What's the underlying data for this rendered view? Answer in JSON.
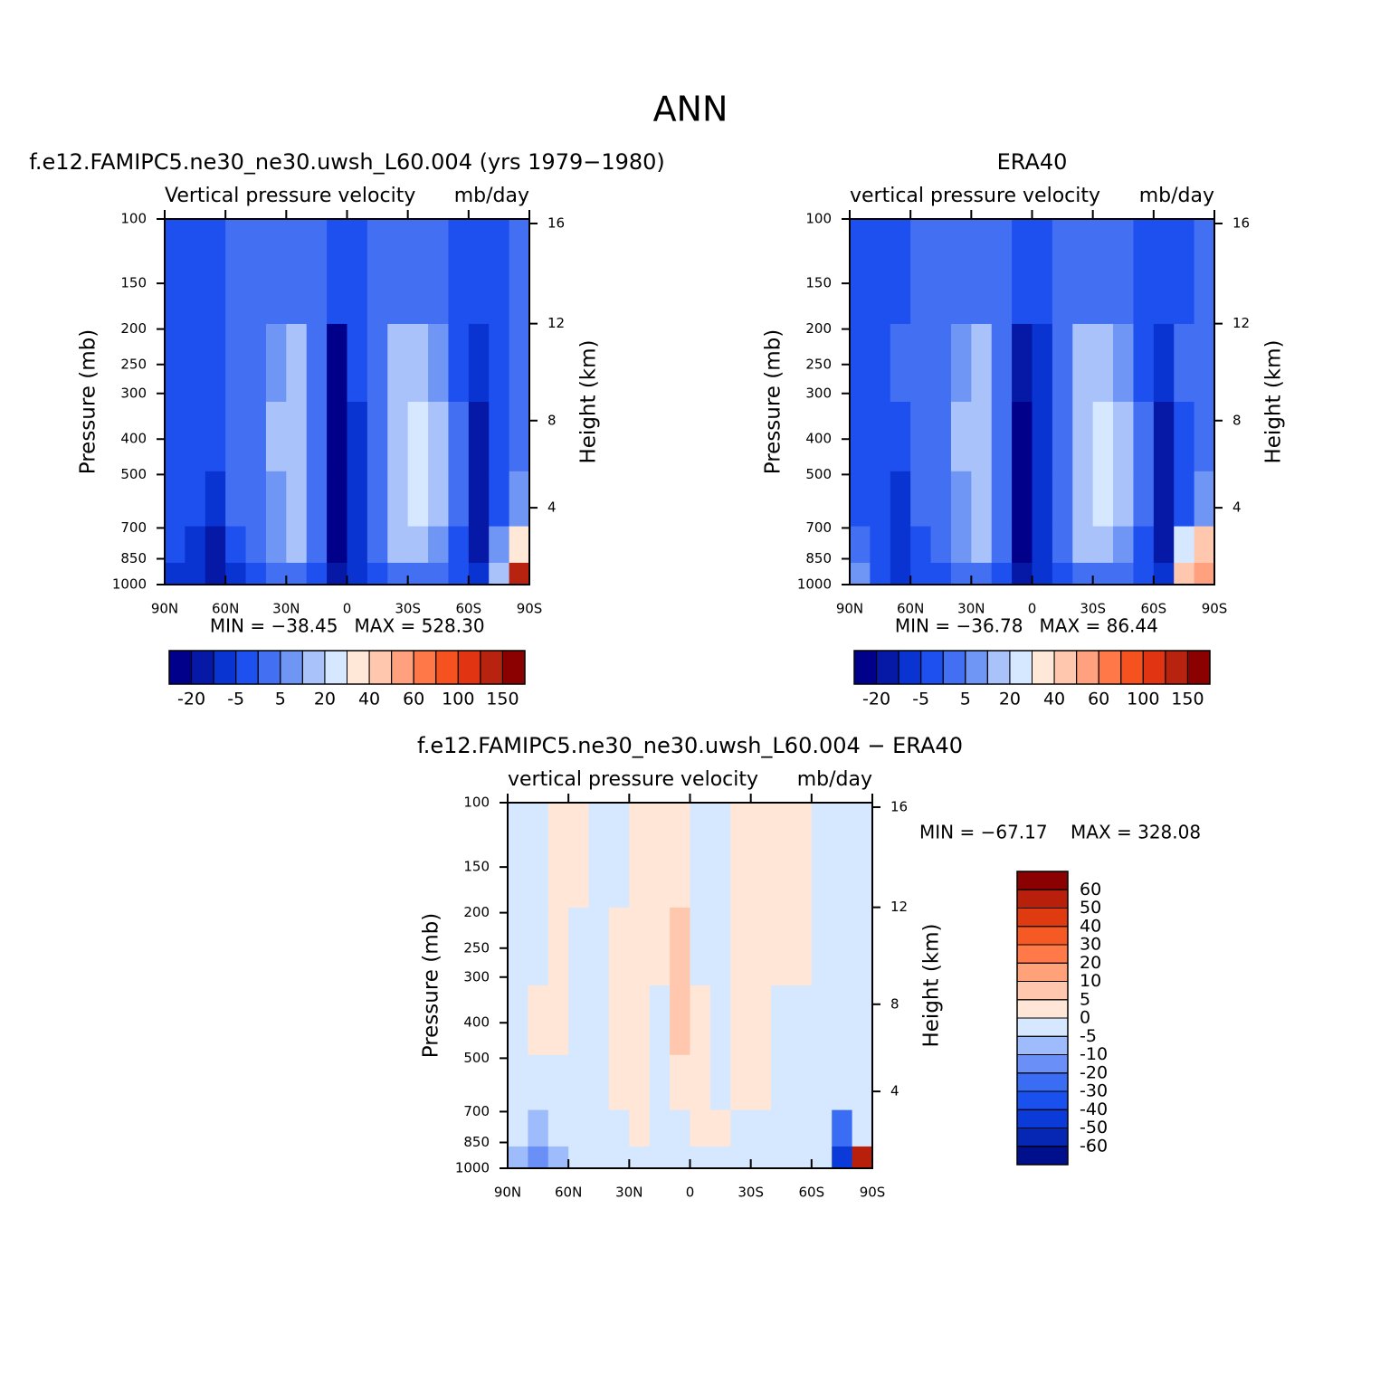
{
  "title": "ANN",
  "chart_data": [
    {
      "type": "contour",
      "title": "f.e12.FAMIPC5.ne30_ne30.uwsh_L60.004 (yrs 1979−1980)",
      "subtitle": "Vertical pressure velocity",
      "units": "mb/day",
      "ylabel": "Pressure (mb)",
      "y2label": "Height (km)",
      "min_text": "MIN = −38.45",
      "max_text": "MAX = 528.30",
      "x": [
        85,
        75,
        65,
        55,
        45,
        35,
        25,
        15,
        5,
        -5,
        -15,
        -25,
        -35,
        -45,
        -55,
        -65,
        -75,
        -85
      ],
      "y": [
        150,
        250,
        400,
        600,
        800,
        950
      ],
      "values": [
        [
          -2,
          -2,
          -2,
          2,
          2,
          2,
          2,
          2,
          -3,
          -2,
          2,
          2,
          2,
          2,
          -2,
          -2,
          -2,
          2
        ],
        [
          -2,
          -2,
          -2,
          2,
          2,
          7,
          12,
          2,
          -25,
          -3,
          2,
          12,
          15,
          7,
          -2,
          -7,
          -2,
          2
        ],
        [
          -2,
          -2,
          -3,
          2,
          2,
          12,
          15,
          2,
          -25,
          -7,
          2,
          15,
          25,
          12,
          2,
          -12,
          -2,
          2
        ],
        [
          -2,
          -3,
          -7,
          2,
          2,
          7,
          15,
          2,
          -25,
          -7,
          2,
          15,
          25,
          12,
          2,
          -15,
          -3,
          7
        ],
        [
          -2,
          -7,
          -12,
          -2,
          2,
          7,
          12,
          2,
          -25,
          -7,
          2,
          12,
          15,
          7,
          -2,
          -12,
          7,
          35
        ],
        [
          -7,
          -7,
          -12,
          -7,
          -2,
          2,
          2,
          -2,
          -15,
          -7,
          -2,
          2,
          2,
          2,
          -2,
          -7,
          15,
          150
        ]
      ],
      "xlim": [
        90,
        -90
      ],
      "xticks": [
        {
          "value": 90,
          "label": "90N"
        },
        {
          "value": 60,
          "label": "60N"
        },
        {
          "value": 30,
          "label": "30N"
        },
        0,
        {
          "value": -30,
          "label": "30S"
        },
        {
          "value": -60,
          "label": "60S"
        },
        {
          "value": -90,
          "label": "90S"
        }
      ],
      "ylim": [
        1000,
        100
      ],
      "log_y": true,
      "yticks": [
        100,
        150,
        200,
        250,
        300,
        400,
        500,
        700,
        850,
        1000
      ],
      "y2lim": [
        0.11,
        16.18
      ],
      "y2ticks": [
        4,
        8,
        12,
        16
      ],
      "colorbar_position": "bottom",
      "levels": [
        -20,
        -10,
        -5,
        0,
        5,
        10,
        20,
        30,
        40,
        50,
        60,
        80,
        100,
        120,
        150
      ],
      "colors": [
        "#00008b",
        "#0618a6",
        "#0a34d2",
        "#1e50f0",
        "#4370f2",
        "#6f95f5",
        "#a9c3fa",
        "#d6e8ff",
        "#ffe8d8",
        "#ffc8ae",
        "#ffa07e",
        "#ff7848",
        "#f5521f",
        "#e03412",
        "#b82310",
        "#8b0000"
      ]
    },
    {
      "type": "contour",
      "title": "ERA40",
      "subtitle": "vertical pressure velocity",
      "units": "mb/day",
      "ylabel": "Pressure (mb)",
      "y2label": "Height (km)",
      "min_text": "MIN = −36.78",
      "max_text": "MAX = 86.44",
      "x": [
        85,
        75,
        65,
        55,
        45,
        35,
        25,
        15,
        5,
        -5,
        -15,
        -25,
        -35,
        -45,
        -55,
        -65,
        -75,
        -85
      ],
      "y": [
        150,
        250,
        400,
        600,
        800,
        950
      ],
      "values": [
        [
          -2,
          -2,
          -2,
          2,
          2,
          2,
          2,
          2,
          -3,
          -2,
          2,
          2,
          2,
          2,
          -2,
          -2,
          -2,
          2
        ],
        [
          -2,
          -2,
          2,
          2,
          2,
          7,
          12,
          2,
          -15,
          -7,
          2,
          12,
          15,
          7,
          -2,
          -7,
          2,
          2
        ],
        [
          -2,
          -2,
          -2,
          2,
          2,
          12,
          15,
          2,
          -25,
          -7,
          2,
          15,
          25,
          12,
          2,
          -12,
          -2,
          2
        ],
        [
          -2,
          -3,
          -7,
          2,
          2,
          7,
          15,
          2,
          -25,
          -7,
          2,
          15,
          25,
          12,
          2,
          -15,
          -2,
          7
        ],
        [
          2,
          -3,
          -7,
          -2,
          2,
          7,
          12,
          2,
          -25,
          -7,
          2,
          12,
          15,
          7,
          -2,
          -12,
          25,
          45
        ],
        [
          7,
          -3,
          -7,
          -3,
          -2,
          2,
          2,
          -2,
          -15,
          -7,
          -2,
          2,
          2,
          2,
          -2,
          -7,
          45,
          60
        ]
      ],
      "xlim": [
        90,
        -90
      ],
      "xticks": [
        {
          "value": 90,
          "label": "90N"
        },
        {
          "value": 60,
          "label": "60N"
        },
        {
          "value": 30,
          "label": "30N"
        },
        0,
        {
          "value": -30,
          "label": "30S"
        },
        {
          "value": -60,
          "label": "60S"
        },
        {
          "value": -90,
          "label": "90S"
        }
      ],
      "ylim": [
        1000,
        100
      ],
      "log_y": true,
      "yticks": [
        100,
        150,
        200,
        250,
        300,
        400,
        500,
        700,
        850,
        1000
      ],
      "y2lim": [
        0.11,
        16.18
      ],
      "y2ticks": [
        4,
        8,
        12,
        16
      ],
      "colorbar_position": "bottom",
      "levels": [
        -20,
        -10,
        -5,
        0,
        5,
        10,
        20,
        30,
        40,
        50,
        60,
        80,
        100,
        120,
        150
      ],
      "colors": [
        "#00008b",
        "#0618a6",
        "#0a34d2",
        "#1e50f0",
        "#4370f2",
        "#6f95f5",
        "#a9c3fa",
        "#d6e8ff",
        "#ffe8d8",
        "#ffc8ae",
        "#ffa07e",
        "#ff7848",
        "#f5521f",
        "#e03412",
        "#b82310",
        "#8b0000"
      ]
    },
    {
      "type": "contour",
      "title": "f.e12.FAMIPC5.ne30_ne30.uwsh_L60.004 − ERA40",
      "subtitle": "vertical pressure velocity",
      "units": "mb/day",
      "ylabel": "Pressure (mb)",
      "y2label": "Height (km)",
      "min_text": "MIN = −67.17",
      "max_text": "MAX = 328.08",
      "x": [
        85,
        75,
        65,
        55,
        45,
        35,
        25,
        15,
        5,
        -5,
        -15,
        -25,
        -35,
        -45,
        -55,
        -65,
        -75,
        -85
      ],
      "y": [
        150,
        250,
        400,
        600,
        800,
        950
      ],
      "values": [
        [
          -2,
          -2,
          2,
          2,
          -2,
          -2,
          2,
          2,
          2,
          -2,
          -2,
          2,
          2,
          2,
          2,
          -2,
          -2,
          -2
        ],
        [
          -2,
          -2,
          2,
          -2,
          -2,
          2,
          2,
          2,
          6,
          -2,
          -2,
          2,
          2,
          2,
          2,
          -2,
          -2,
          -2
        ],
        [
          -2,
          2,
          2,
          -2,
          -2,
          2,
          2,
          -2,
          6,
          2,
          -2,
          2,
          2,
          -2,
          -2,
          -2,
          -2,
          -2
        ],
        [
          -2,
          -2,
          -2,
          -2,
          -2,
          2,
          2,
          -2,
          2,
          2,
          -2,
          2,
          2,
          -2,
          -2,
          -2,
          -2,
          -2
        ],
        [
          -2,
          -7,
          -2,
          -2,
          -2,
          -2,
          2,
          -2,
          -2,
          2,
          2,
          -2,
          -2,
          -2,
          -2,
          -2,
          -25,
          -2
        ],
        [
          -7,
          -12,
          -7,
          -2,
          -2,
          -2,
          -2,
          -2,
          -2,
          -2,
          -2,
          -2,
          -2,
          -2,
          -2,
          -2,
          -45,
          60
        ]
      ],
      "xlim": [
        90,
        -90
      ],
      "xticks": [
        {
          "value": 90,
          "label": "90N"
        },
        {
          "value": 60,
          "label": "60N"
        },
        {
          "value": 30,
          "label": "30N"
        },
        0,
        {
          "value": -30,
          "label": "30S"
        },
        {
          "value": -60,
          "label": "60S"
        },
        {
          "value": -90,
          "label": "90S"
        }
      ],
      "ylim": [
        1000,
        100
      ],
      "log_y": true,
      "yticks": [
        100,
        150,
        200,
        250,
        300,
        400,
        500,
        700,
        850,
        1000
      ],
      "y2lim": [
        0.11,
        16.18
      ],
      "y2ticks": [
        4,
        8,
        12,
        16
      ],
      "colorbar_position": "right",
      "levels": [
        -60,
        -50,
        -40,
        -30,
        -20,
        -10,
        -5,
        0,
        5,
        10,
        20,
        30,
        40,
        50,
        60
      ],
      "colors": [
        "#00108c",
        "#0626b4",
        "#0a3ad8",
        "#1a50ee",
        "#3a6cf4",
        "#6a90f8",
        "#9ebcfc",
        "#d6e8ff",
        "#ffe6d6",
        "#ffc8ae",
        "#ffa27a",
        "#ff7a48",
        "#f55a24",
        "#e03a10",
        "#b8200c",
        "#8b0000"
      ]
    }
  ]
}
